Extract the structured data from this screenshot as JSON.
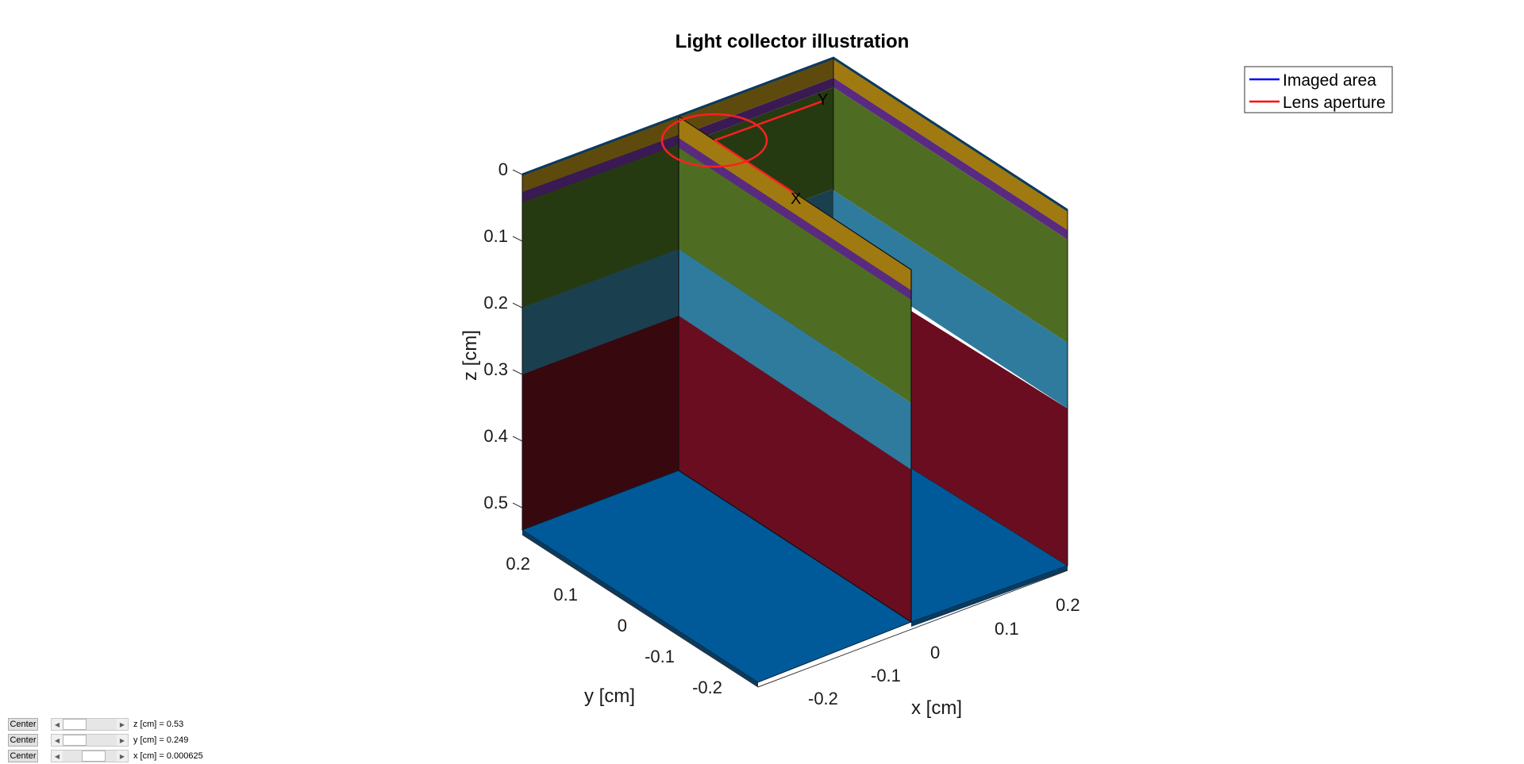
{
  "figure": {
    "title": "Light collector illustration",
    "legend": [
      {
        "label": "Imaged area",
        "color": "#0000ff"
      },
      {
        "label": "Lens aperture",
        "color": "#ff0000"
      }
    ],
    "axes": {
      "z_label": "z [cm]",
      "y_label": "y [cm]",
      "x_label": "x [cm]",
      "z_ticks": [
        "0",
        "0.1",
        "0.2",
        "0.3",
        "0.4",
        "0.5"
      ],
      "y_ticks": [
        "0.2",
        "0.1",
        "0",
        "-0.1",
        "-0.2"
      ],
      "x_ticks": [
        "-0.2",
        "-0.1",
        "0",
        "0.1",
        "0.2"
      ]
    },
    "markers": {
      "x": "X",
      "y": "Y"
    },
    "layer_colors": {
      "front_face": [
        "#a07a10",
        "#5a2a80",
        "#4e6d22",
        "#2f7b9e",
        "#6a0d20"
      ],
      "left_face": [
        "#5f4a0e",
        "#3a1a52",
        "#263a12",
        "#1a4050",
        "#38080f"
      ],
      "bottom": "#005a9a"
    }
  },
  "controls": [
    {
      "button": "Center",
      "label": "z [cm] = 0.53",
      "thumb_fraction": 0.0
    },
    {
      "button": "Center",
      "label": "y [cm] = 0.249",
      "thumb_fraction": 0.0
    },
    {
      "button": "Center",
      "label": "x [cm] = 0.000625",
      "thumb_fraction": 0.5
    }
  ]
}
